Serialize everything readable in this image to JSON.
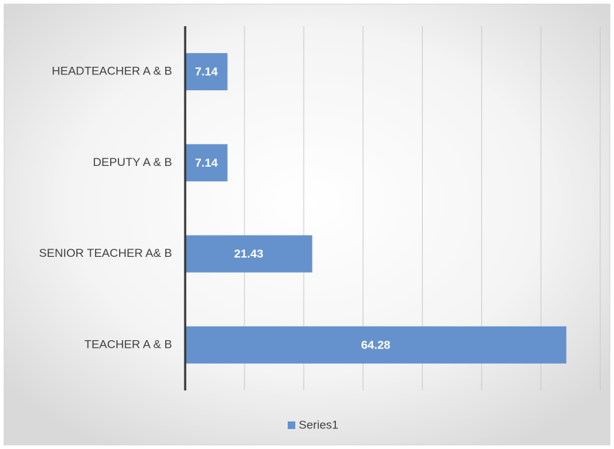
{
  "chart_data": {
    "type": "bar",
    "orientation": "horizontal",
    "categories": [
      "HEADTEACHER A & B",
      "DEPUTY A & B",
      "SENIOR TEACHER A& B",
      "TEACHER A & B"
    ],
    "series": [
      {
        "name": "Series1",
        "color": "#6592cd",
        "values": [
          7.14,
          7.14,
          21.43,
          64.28
        ]
      }
    ],
    "xlim": [
      0,
      70
    ],
    "xticks": [
      0,
      10,
      20,
      30,
      40,
      50,
      60,
      70
    ],
    "grid": true,
    "legend": "bottom"
  }
}
